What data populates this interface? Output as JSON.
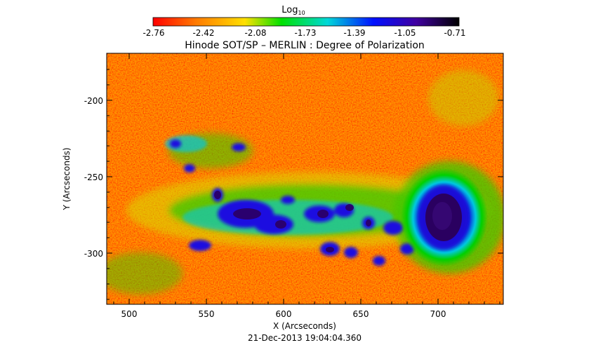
{
  "colorbar": {
    "label_base": "Log",
    "label_sub": "10",
    "ticks": [
      "-2.76",
      "-2.42",
      "-2.08",
      "-1.73",
      "-1.39",
      "-1.05",
      "-0.71"
    ],
    "colors": [
      "#ff0000",
      "#ff7a00",
      "#ffe000",
      "#00e000",
      "#00d8d8",
      "#0010ff",
      "#4000a0",
      "#000000"
    ]
  },
  "title": "Hinode SOT/SP – MERLIN : Degree of Polarization",
  "axes": {
    "xlabel": "X (Arcseconds)",
    "ylabel": "Y (Arcseconds)",
    "xticks": [
      "500",
      "550",
      "600",
      "650",
      "700"
    ],
    "yticks": [
      "-200",
      "-250",
      "-300"
    ]
  },
  "timestamp": "21-Dec-2013 19:04:04.360"
}
